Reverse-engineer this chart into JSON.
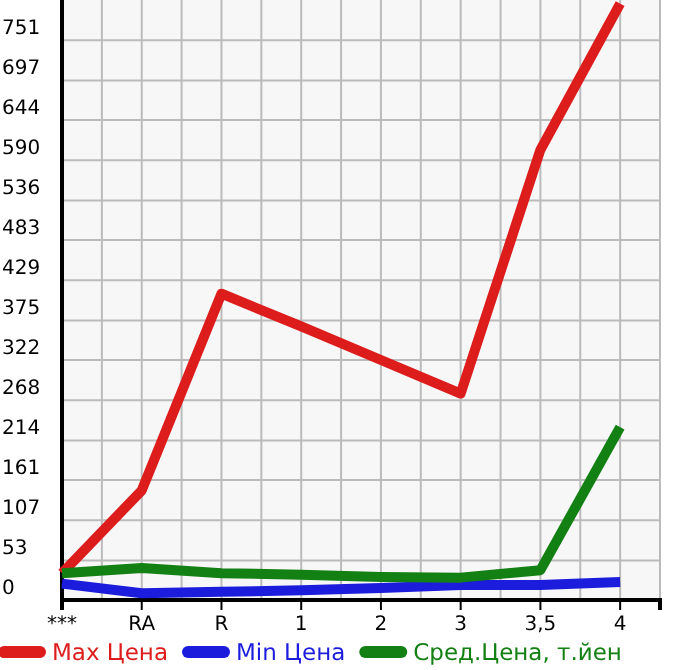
{
  "chart_data": {
    "type": "line",
    "categories": [
      "***",
      "RA",
      "R",
      "1",
      "2",
      "3",
      "3,5",
      "4"
    ],
    "series": [
      {
        "name": "Max Цена",
        "color": "#dd1c1c",
        "values": [
          36,
          147,
          411,
          367,
          322,
          277,
          604,
          800
        ]
      },
      {
        "name": "Min Цена",
        "color": "#1c1cdd",
        "values": [
          22,
          9,
          11,
          13,
          16,
          20,
          20,
          24
        ]
      },
      {
        "name": "Сред.Цена, т.йен",
        "color": "#138013",
        "values": [
          36,
          43,
          36,
          34,
          31,
          30,
          40,
          232
        ]
      }
    ],
    "ylim": [
      0,
      805
    ],
    "yticks": [
      0,
      53,
      107,
      161,
      214,
      268,
      322,
      375,
      429,
      483,
      536,
      590,
      644,
      697,
      751
    ],
    "grid": true,
    "legend": "bottom",
    "marker": "none",
    "line_style": "solid"
  }
}
